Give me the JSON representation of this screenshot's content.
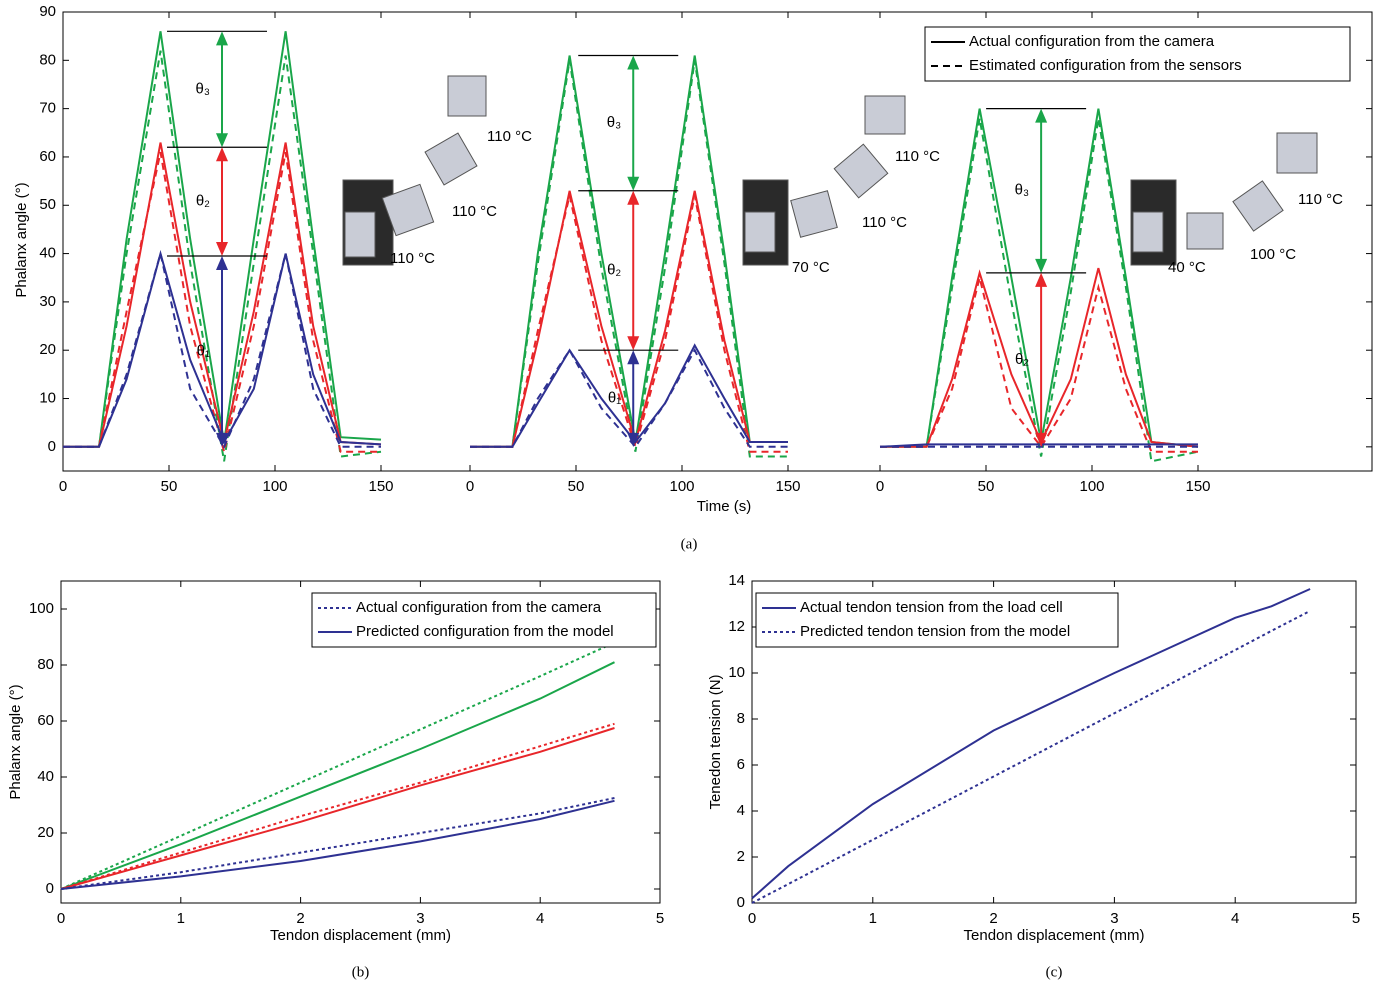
{
  "chart_data": [
    {
      "type": "line-panels",
      "xlabel": "Time (s)",
      "ylabel": "Phalanx angle (°)",
      "caption": "(a)",
      "ylim": [
        -5,
        90
      ],
      "yticks": [
        0,
        10,
        20,
        30,
        40,
        50,
        60,
        70,
        80,
        90
      ],
      "legend": [
        {
          "label": "Actual configuration from the camera",
          "dash": false
        },
        {
          "label": "Estimated configuration from the sensors",
          "dash": true
        }
      ],
      "panels": [
        {
          "xlim": [
            0,
            150
          ],
          "xticks": [
            0,
            50,
            100,
            150
          ],
          "x": [
            0,
            17,
            30,
            46,
            60,
            76,
            90,
            105,
            118,
            131,
            150
          ],
          "series": [
            {
              "color": "#1aa64a",
              "dash": false,
              "values": [
                0,
                0,
                43,
                86,
                43,
                1,
                43,
                86,
                43,
                2,
                1.5
              ]
            },
            {
              "color": "#1aa64a",
              "dash": true,
              "values": [
                0,
                0,
                40,
                82,
                38,
                -3,
                38,
                81,
                40,
                -2,
                -1
              ]
            },
            {
              "color": "#e8262a",
              "dash": false,
              "values": [
                0,
                0,
                25,
                63,
                30,
                1,
                28,
                63,
                25,
                1,
                0.5
              ]
            },
            {
              "color": "#e8262a",
              "dash": true,
              "values": [
                0,
                0,
                28,
                61,
                25,
                -1,
                25,
                61,
                22,
                -1,
                -1
              ]
            },
            {
              "color": "#2e3192",
              "dash": false,
              "values": [
                0,
                0,
                14,
                40,
                18,
                1,
                12,
                40,
                15,
                1,
                0.5
              ]
            },
            {
              "color": "#2e3192",
              "dash": true,
              "values": [
                0,
                0,
                15,
                40,
                12,
                0,
                14,
                40,
                12,
                0,
                0
              ]
            }
          ],
          "arrows": [
            {
              "label": "θ₃",
              "color": "#1aa64a",
              "text_color": "#2aa59a",
              "x": 75,
              "from": 62,
              "to": 86
            },
            {
              "label": "θ₂",
              "color": "#e8262a",
              "text_color": "#e8542a",
              "x": 75,
              "from": 39.5,
              "to": 62
            },
            {
              "label": "θ₁",
              "color": "#2e3192",
              "text_color": "#2e3192",
              "x": 75,
              "from": 0,
              "to": 39.5
            }
          ],
          "temperatures": [
            {
              "text": "110 °C",
              "color": "#1aa64a"
            },
            {
              "text": "110 °C",
              "color": "#e8262a"
            },
            {
              "text": "110 °C",
              "color": "#2e3192"
            }
          ]
        },
        {
          "xlim": [
            0,
            150
          ],
          "xticks": [
            0,
            50,
            100,
            150
          ],
          "x": [
            0,
            20,
            32,
            47,
            62,
            78,
            92,
            106,
            120,
            132,
            150
          ],
          "series": [
            {
              "color": "#1aa64a",
              "dash": false,
              "values": [
                0,
                0,
                40,
                81,
                40,
                1,
                40,
                81,
                40,
                1,
                1
              ]
            },
            {
              "color": "#1aa64a",
              "dash": true,
              "values": [
                0,
                0,
                38,
                80,
                37,
                -1,
                37,
                80,
                38,
                -2,
                -2
              ]
            },
            {
              "color": "#e8262a",
              "dash": false,
              "values": [
                0,
                0,
                22,
                53,
                25,
                1,
                24,
                53,
                22,
                1,
                1
              ]
            },
            {
              "color": "#e8262a",
              "dash": true,
              "values": [
                0,
                0,
                24,
                52,
                22,
                0,
                22,
                52,
                20,
                -1,
                -1
              ]
            },
            {
              "color": "#2e3192",
              "dash": false,
              "values": [
                0,
                0,
                9,
                20,
                10,
                1,
                9,
                21,
                10,
                1,
                1
              ]
            },
            {
              "color": "#2e3192",
              "dash": true,
              "values": [
                0,
                0,
                10,
                20,
                8,
                0,
                9,
                20,
                8,
                0,
                0
              ]
            }
          ],
          "arrows": [
            {
              "label": "θ₃",
              "color": "#1aa64a",
              "text_color": "#2aa59a",
              "x": 77,
              "from": 53,
              "to": 81
            },
            {
              "label": "θ₂",
              "color": "#e8262a",
              "text_color": "#e8542a",
              "x": 77,
              "from": 20,
              "to": 53
            },
            {
              "label": "θ₁",
              "color": "#2e3192",
              "text_color": "#2e3192",
              "x": 77,
              "from": 0,
              "to": 20
            }
          ],
          "temperatures": [
            {
              "text": "110 °C",
              "color": "#1aa64a"
            },
            {
              "text": "110 °C",
              "color": "#e8262a"
            },
            {
              "text": "70 °C",
              "color": "#2e3192"
            }
          ]
        },
        {
          "xlim": [
            0,
            150
          ],
          "xticks": [
            0,
            50,
            100,
            150
          ],
          "x": [
            0,
            22,
            34,
            47,
            62,
            76,
            90,
            103,
            116,
            128,
            150
          ],
          "series": [
            {
              "color": "#1aa64a",
              "dash": false,
              "values": [
                0,
                0,
                35,
                70,
                35,
                1,
                35,
                70,
                35,
                1,
                0
              ]
            },
            {
              "color": "#1aa64a",
              "dash": true,
              "values": [
                0,
                0,
                33,
                68,
                30,
                -2,
                32,
                68,
                33,
                -3,
                -1
              ]
            },
            {
              "color": "#e8262a",
              "dash": false,
              "values": [
                0,
                0,
                14,
                36,
                15,
                1,
                14,
                37,
                15,
                1,
                0
              ]
            },
            {
              "color": "#e8262a",
              "dash": true,
              "values": [
                0,
                0,
                12,
                35,
                8,
                0,
                10,
                33,
                12,
                -1,
                -1
              ]
            },
            {
              "color": "#2e3192",
              "dash": false,
              "values": [
                0,
                0.5,
                0.5,
                0.5,
                0.5,
                0.5,
                0.5,
                0.5,
                0.5,
                0.5,
                0.5
              ]
            },
            {
              "color": "#2e3192",
              "dash": true,
              "values": [
                0,
                0,
                0,
                0,
                0,
                0,
                0,
                0,
                0,
                0,
                0
              ]
            }
          ],
          "arrows": [
            {
              "label": "θ₃",
              "color": "#1aa64a",
              "text_color": "#2aa59a",
              "x": 76,
              "from": 36,
              "to": 70
            },
            {
              "label": "θ₂",
              "color": "#e8262a",
              "text_color": "#e8542a",
              "x": 76,
              "from": 0,
              "to": 36
            }
          ],
          "temperatures": [
            {
              "text": "110 °C",
              "color": "#1aa64a"
            },
            {
              "text": "100 °C",
              "color": "#e8262a"
            },
            {
              "text": "40 °C",
              "color": "#2e3192"
            }
          ]
        }
      ]
    },
    {
      "type": "line",
      "xlabel": "Tendon displacement (mm)",
      "ylabel": "Phalanx angle (°)",
      "caption": "(b)",
      "xlim": [
        0,
        5
      ],
      "xticks": [
        0,
        1,
        2,
        3,
        4,
        5
      ],
      "ylim": [
        -5,
        110
      ],
      "yticks": [
        0,
        20,
        40,
        60,
        80,
        100
      ],
      "legend_color": "#2e3192",
      "legend": [
        {
          "label": "Actual configuration from the camera",
          "dash": true
        },
        {
          "label": "Predicted configuration from the model",
          "dash": false
        }
      ],
      "x": [
        0,
        1,
        2,
        3,
        4,
        4.62
      ],
      "series": [
        {
          "color": "#1aa64a",
          "dash": true,
          "values": [
            0,
            19,
            38,
            57,
            76,
            88
          ]
        },
        {
          "color": "#1aa64a",
          "dash": false,
          "values": [
            0,
            16,
            33,
            50,
            68,
            81
          ]
        },
        {
          "color": "#e8262a",
          "dash": true,
          "values": [
            0,
            13,
            26,
            38,
            51,
            59
          ]
        },
        {
          "color": "#e8262a",
          "dash": false,
          "values": [
            0,
            12,
            24,
            37,
            49,
            57.5
          ]
        },
        {
          "color": "#2e3192",
          "dash": true,
          "values": [
            0,
            6,
            13,
            20,
            27,
            32.5
          ]
        },
        {
          "color": "#2e3192",
          "dash": false,
          "values": [
            0,
            4.5,
            10,
            17,
            25,
            31.5
          ]
        }
      ]
    },
    {
      "type": "line",
      "xlabel": "Tendon displacement (mm)",
      "ylabel": "Tenedon tension (N)",
      "caption": "(c)",
      "xlim": [
        0,
        5
      ],
      "xticks": [
        0,
        1,
        2,
        3,
        4,
        5
      ],
      "ylim": [
        0,
        14
      ],
      "yticks": [
        0,
        2,
        4,
        6,
        8,
        10,
        12,
        14
      ],
      "x": [
        0,
        0.3,
        1,
        2,
        3,
        4,
        4.3,
        4.62
      ],
      "series": [
        {
          "name": "Actual tendon tension from the load cell",
          "color": "#2e3192",
          "dash": false,
          "values": [
            0.2,
            1.6,
            4.3,
            7.5,
            10,
            12.4,
            12.9,
            13.65
          ]
        },
        {
          "name": "Predicted tendon tension from the model",
          "color": "#2e3192",
          "dash": true,
          "values": [
            0,
            0.82,
            2.75,
            5.5,
            8.25,
            11,
            11.83,
            12.7
          ]
        }
      ]
    }
  ]
}
